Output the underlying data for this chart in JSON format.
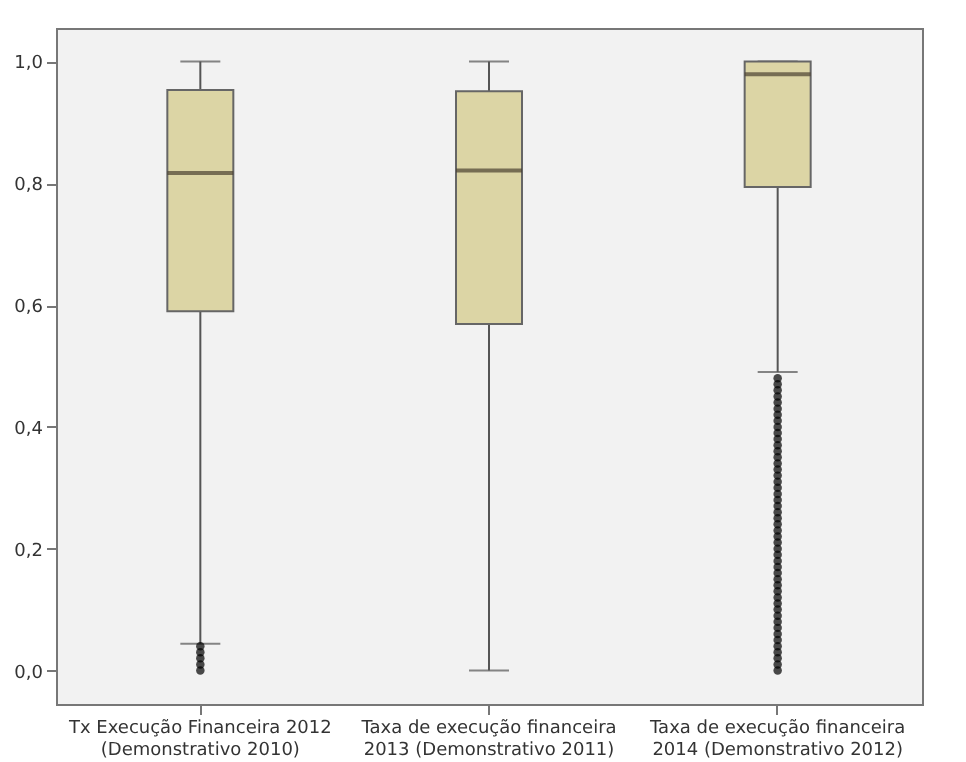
{
  "chart_data": {
    "type": "box",
    "categories": [
      "Tx Execução Financeira 2012 (Demonstrativo 2010)",
      "Taxa de execução financeira 2013 (Demonstrativo 2011)",
      "Taxa de execução financeira 2014 (Demonstrativo 2012)"
    ],
    "boxes": [
      {
        "low": 0.044,
        "q1": 0.59,
        "median": 0.817,
        "q3": 0.953,
        "high": 1.0,
        "outliers": [
          0.0,
          0.01,
          0.02,
          0.03,
          0.04
        ]
      },
      {
        "low": 0.0,
        "q1": 0.569,
        "median": 0.821,
        "q3": 0.951,
        "high": 1.0
      },
      {
        "low": 0.49,
        "q1": 0.794,
        "median": 0.979,
        "q3": 1.0,
        "high": 1.0,
        "outliers": [
          0.0,
          0.01,
          0.02,
          0.03,
          0.04,
          0.05,
          0.06,
          0.07,
          0.08,
          0.09,
          0.1,
          0.11,
          0.12,
          0.13,
          0.14,
          0.15,
          0.16,
          0.17,
          0.18,
          0.19,
          0.2,
          0.21,
          0.22,
          0.23,
          0.24,
          0.25,
          0.26,
          0.27,
          0.28,
          0.29,
          0.3,
          0.31,
          0.32,
          0.33,
          0.34,
          0.35,
          0.36,
          0.37,
          0.38,
          0.39,
          0.4,
          0.41,
          0.42,
          0.43,
          0.44,
          0.45,
          0.46,
          0.47,
          0.48
        ]
      }
    ],
    "color": "#dcd5a5",
    "ylim": [
      -0.055,
      1.055
    ],
    "yticks": [
      {
        "value": 0,
        "label": "0,0"
      },
      {
        "value": 0.2,
        "label": "0,2"
      },
      {
        "value": 0.4,
        "label": "0,4"
      },
      {
        "value": 0.6,
        "label": "0,6"
      },
      {
        "value": 0.8,
        "label": "0,8"
      },
      {
        "value": 1.0,
        "label": "1,0"
      }
    ],
    "grid": false,
    "marker": "circle"
  }
}
